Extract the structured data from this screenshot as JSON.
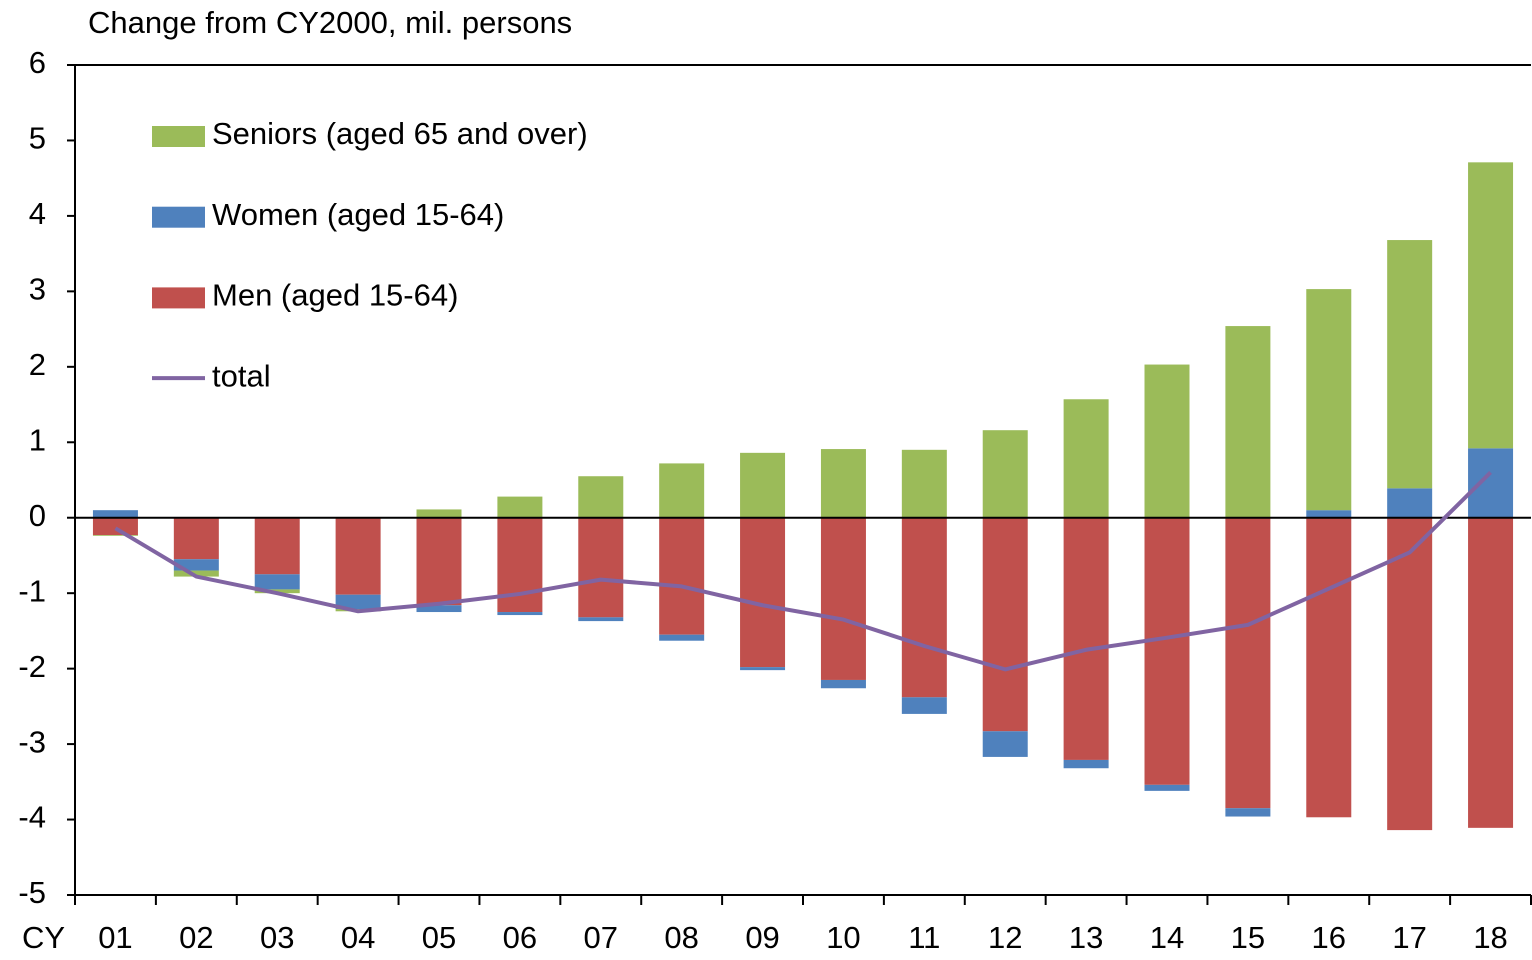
{
  "chart_data": {
    "type": "bar",
    "stacked": true,
    "title": "Change from CY2000, mil. persons",
    "xlabel": "CY",
    "categories": [
      "01",
      "02",
      "03",
      "04",
      "05",
      "06",
      "07",
      "08",
      "09",
      "10",
      "11",
      "12",
      "13",
      "14",
      "15",
      "16",
      "17",
      "18"
    ],
    "series": [
      {
        "name": "Seniors (aged 65 and over)",
        "color": "#9bbb59",
        "values": [
          -0.01,
          -0.08,
          -0.05,
          -0.03,
          0.11,
          0.28,
          0.55,
          0.72,
          0.86,
          0.91,
          0.9,
          1.16,
          1.57,
          2.03,
          2.54,
          2.93,
          3.29,
          3.79
        ]
      },
      {
        "name": "Women (aged 15-64)",
        "color": "#4f81bd",
        "values": [
          0.1,
          -0.15,
          -0.2,
          -0.19,
          -0.09,
          -0.04,
          -0.05,
          -0.08,
          -0.04,
          -0.11,
          -0.22,
          -0.34,
          -0.11,
          -0.08,
          -0.11,
          0.1,
          0.39,
          0.92
        ]
      },
      {
        "name": "Men (aged 15-64)",
        "color": "#c0504d",
        "values": [
          -0.23,
          -0.55,
          -0.75,
          -1.02,
          -1.16,
          -1.25,
          -1.32,
          -1.55,
          -1.98,
          -2.15,
          -2.38,
          -2.83,
          -3.21,
          -3.54,
          -3.85,
          -3.97,
          -4.14,
          -4.11
        ]
      },
      {
        "name": "total",
        "type": "line",
        "color": "#8064a2",
        "values": [
          -0.14,
          -0.78,
          -1.0,
          -1.24,
          -1.14,
          -1.01,
          -0.82,
          -0.91,
          -1.16,
          -1.35,
          -1.7,
          -2.01,
          -1.75,
          -1.59,
          -1.42,
          -0.94,
          -0.46,
          0.6
        ]
      }
    ],
    "ylim": [
      -5,
      6
    ],
    "yticks": [
      -5,
      -4,
      -3,
      -2,
      -1,
      0,
      1,
      2,
      3,
      4,
      5,
      6
    ],
    "grid": false,
    "legend": "upper left"
  }
}
